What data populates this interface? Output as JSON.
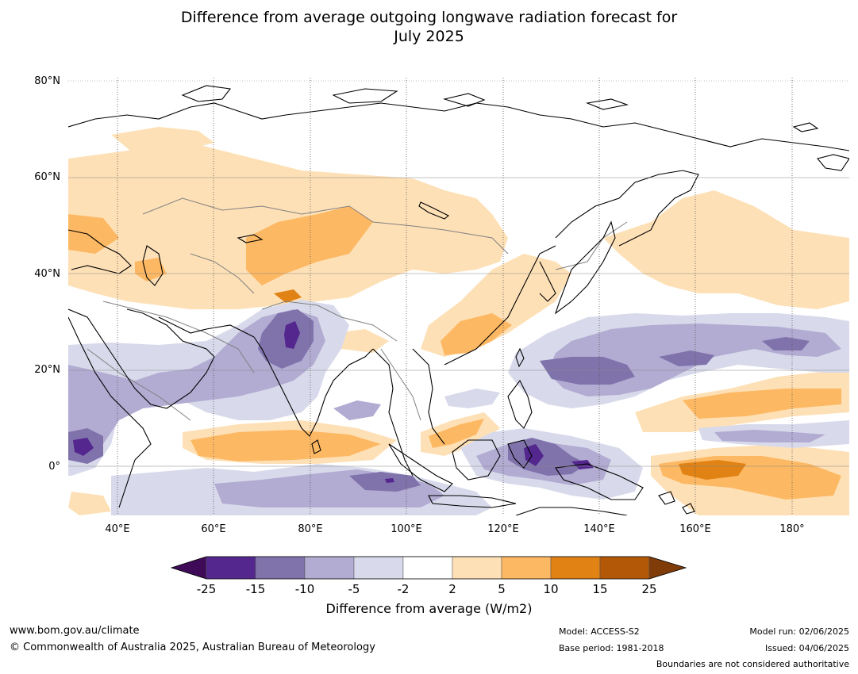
{
  "title": {
    "line1": "Difference from average outgoing longwave radiation forecast for",
    "line2": "July 2025"
  },
  "map": {
    "lat_labels": [
      "80°N",
      "60°N",
      "40°N",
      "20°N",
      "0°"
    ],
    "lon_labels": [
      "40°E",
      "60°E",
      "80°E",
      "100°E",
      "120°E",
      "140°E",
      "160°E",
      "180°"
    ],
    "colors": {
      "ocean": "#ffffff",
      "coast": "#000000",
      "border": "#808080"
    }
  },
  "colorbar": {
    "ticks": [
      "-25",
      "-15",
      "-10",
      "-5",
      "-2",
      "2",
      "5",
      "10",
      "15",
      "25"
    ],
    "colors": [
      "#3f0a57",
      "#54278f",
      "#8073ac",
      "#b2abd2",
      "#d8daeb",
      "#ffffff",
      "#fee0b6",
      "#fdb863",
      "#e08214",
      "#b35806",
      "#7f3b08"
    ],
    "label": "Difference from average (W/m2)"
  },
  "footer": {
    "url": "www.bom.gov.au/climate",
    "copyright": "© Commonwealth of Australia 2025, Australian Bureau of Meteorology",
    "model": "Model: ACCESS-S2",
    "base_period": "Base period: 1981-2018",
    "model_run": "Model run: 02/06/2025",
    "issued": "Issued: 04/06/2025",
    "disclaimer": "Boundaries are not considered authoritative"
  }
}
